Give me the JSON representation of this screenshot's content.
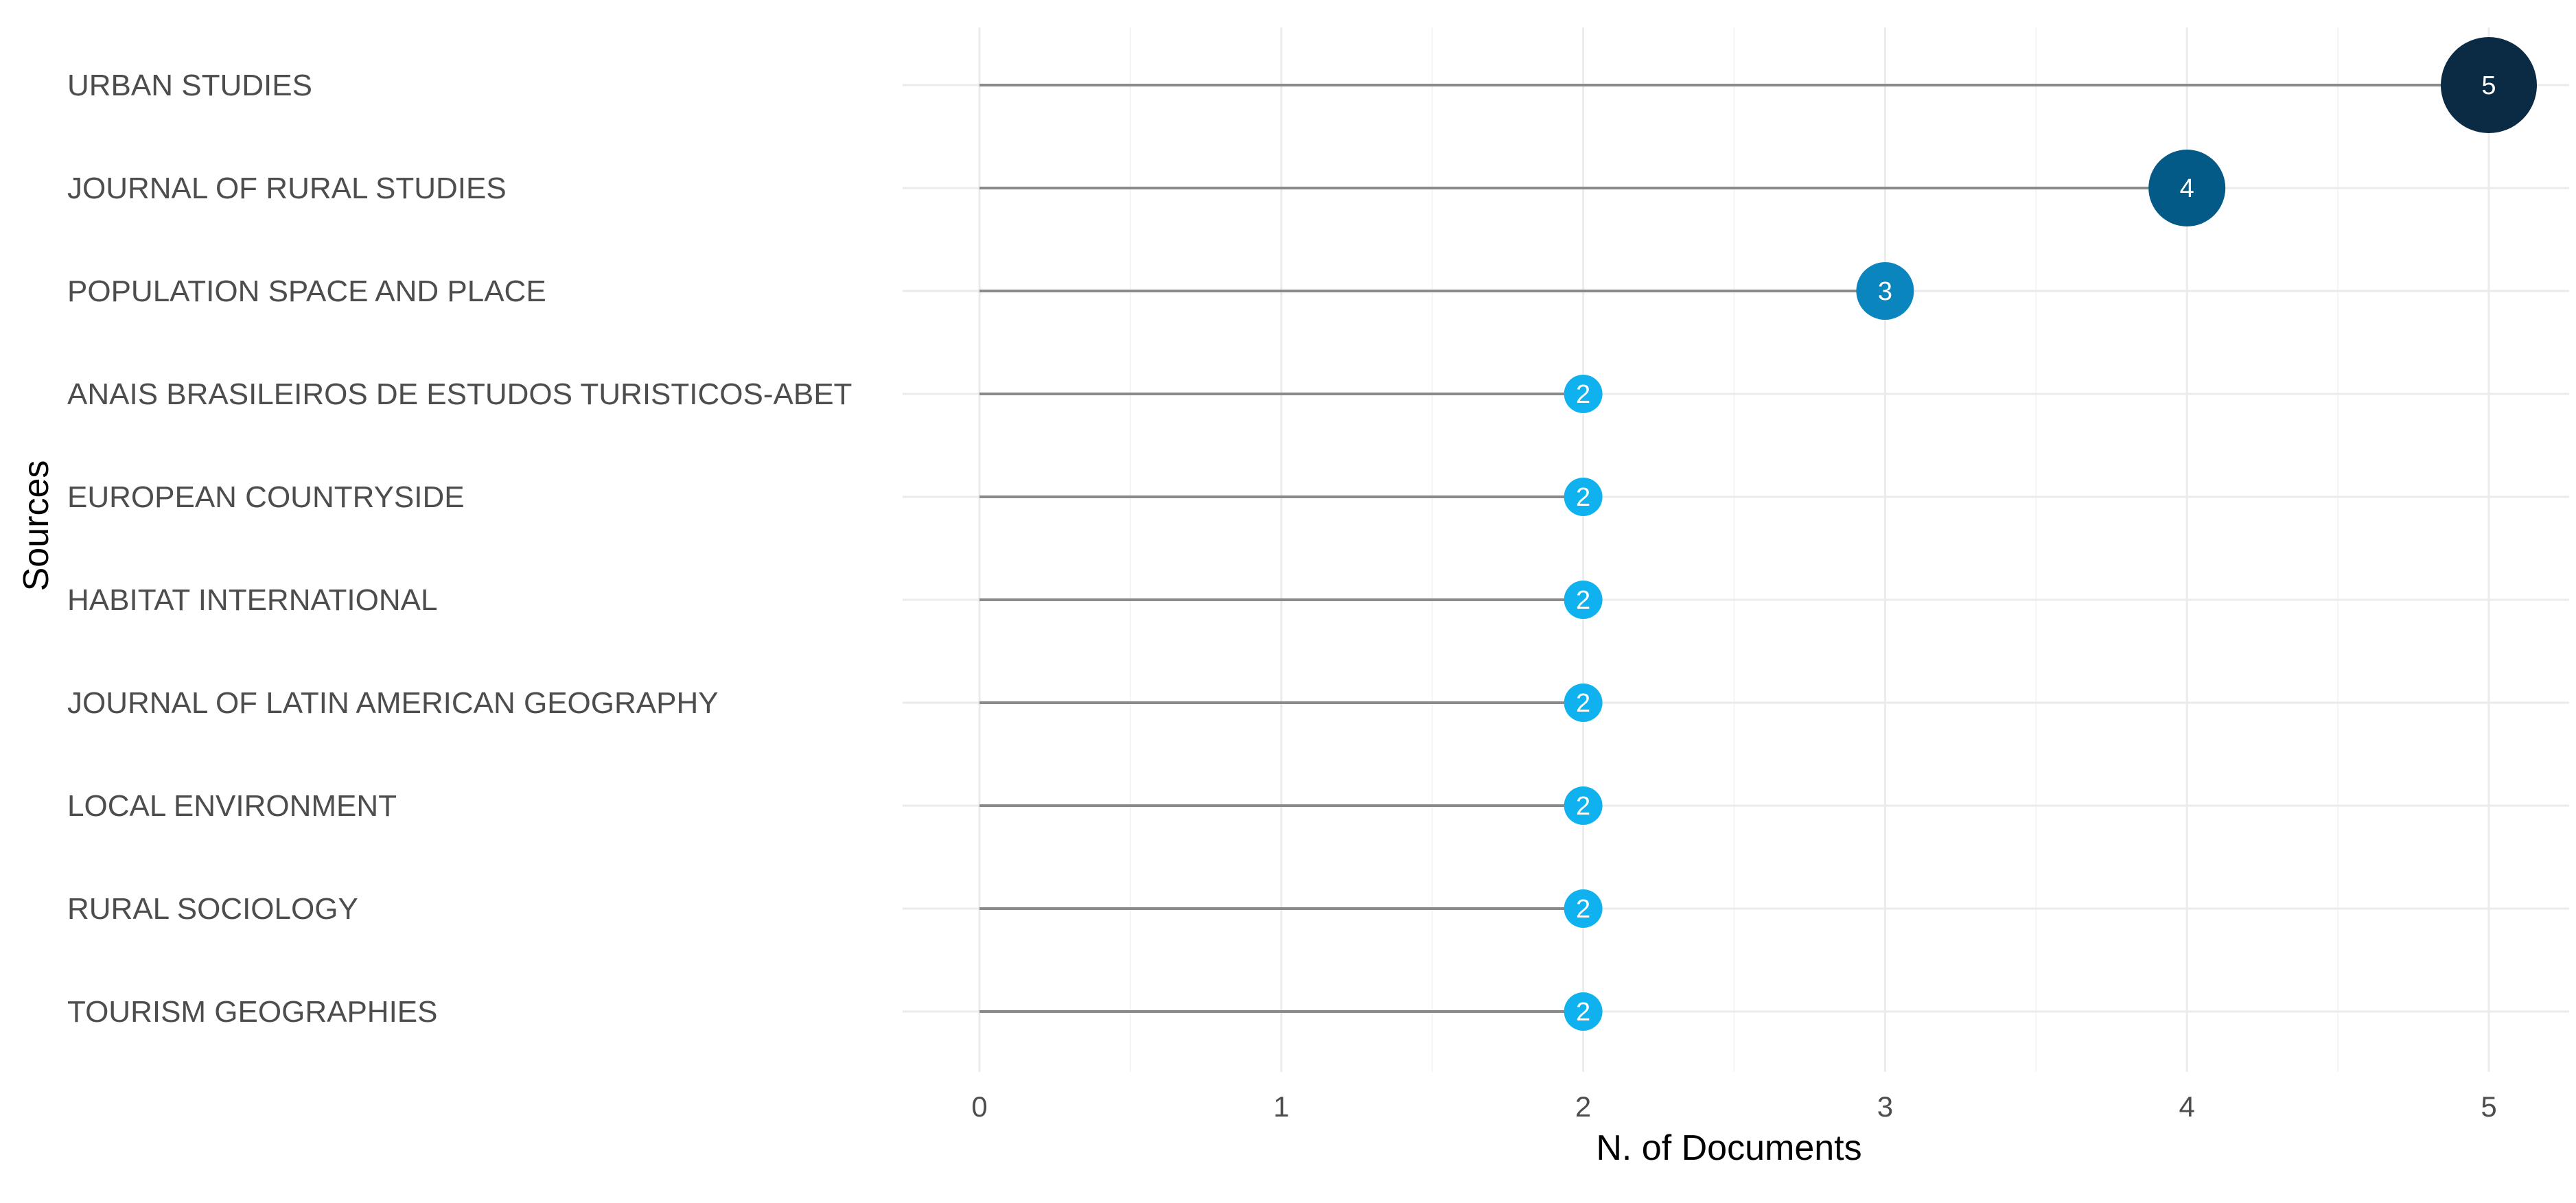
{
  "chart_data": {
    "type": "lollipop",
    "categories": [
      "URBAN STUDIES",
      "JOURNAL OF RURAL STUDIES",
      "POPULATION SPACE AND PLACE",
      "ANAIS BRASILEIROS DE ESTUDOS TURISTICOS-ABET",
      "EUROPEAN COUNTRYSIDE",
      "HABITAT INTERNATIONAL",
      "JOURNAL OF LATIN AMERICAN GEOGRAPHY",
      "LOCAL ENVIRONMENT",
      "RURAL SOCIOLOGY",
      "TOURISM GEOGRAPHIES"
    ],
    "values": [
      5,
      4,
      3,
      2,
      2,
      2,
      2,
      2,
      2,
      2
    ],
    "xlabel": "N. of Documents",
    "ylabel": "Sources",
    "xlim": [
      0,
      5
    ],
    "xticks": [
      0,
      1,
      2,
      3,
      4,
      5
    ],
    "grid": true,
    "point_labels": true,
    "point_size_encodes_value": true,
    "colors": {
      "5": "#0b2b45",
      "4": "#045a87",
      "3": "#0a85bd",
      "2": "#0fb2ee"
    },
    "segment_color": "#8a8a8a"
  }
}
